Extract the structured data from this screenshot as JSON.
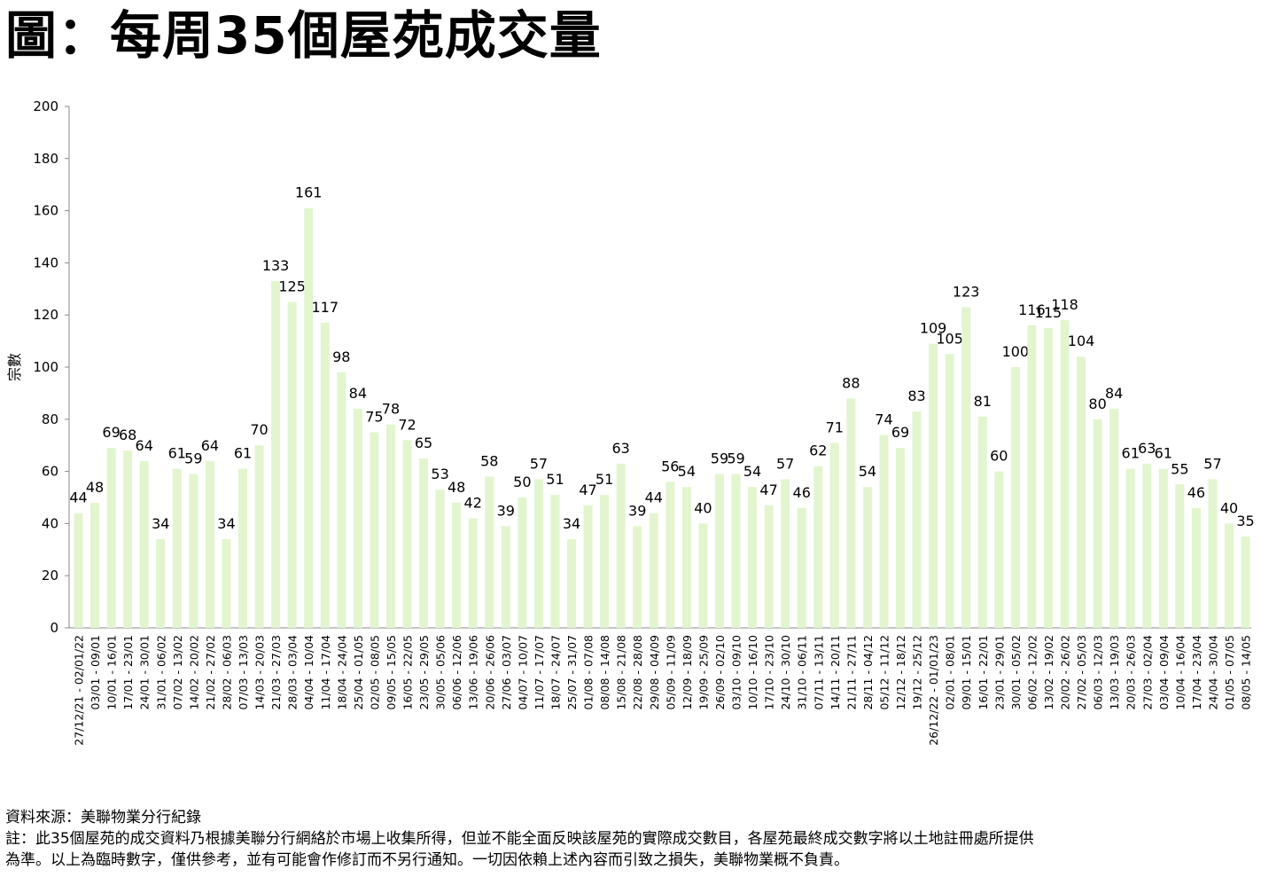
{
  "title": "圖：每周35個屋苑成交量",
  "footer": {
    "source": "資料來源：美聯物業分行紀錄",
    "note_line1": "註：此35個屋苑的成交資料乃根據美聯分行網絡於市場上收集所得，但並不能全面反映該屋苑的實際成交數目，各屋苑最終成交數字將以土地註冊處所提供",
    "note_line2": "為準。以上為臨時數字，僅供參考，並有可能會作修訂而不另行通知。一切因依賴上述內容而引致之損失，美聯物業概不負責。"
  },
  "colors": {
    "bar": "#e2f5cf",
    "axis": "#888888",
    "text": "#000000"
  },
  "chart_data": {
    "type": "bar",
    "title": "圖：每周35個屋苑成交量",
    "ylabel": "宗數",
    "xlabel": "",
    "ylim": [
      0,
      200
    ],
    "yticks": [
      0,
      20,
      40,
      60,
      80,
      100,
      120,
      140,
      160,
      180,
      200
    ],
    "grid": false,
    "legend": "none",
    "categories": [
      "27/12/21 - 02/01/22",
      "03/01 - 09/01",
      "10/01 - 16/01",
      "17/01 - 23/01",
      "24/01 - 30/01",
      "31/01 - 06/02",
      "07/02 - 13/02",
      "14/02 - 20/02",
      "21/02 - 27/02",
      "28/02 - 06/03",
      "07/03 - 13/03",
      "14/03 - 20/03",
      "21/03 - 27/03",
      "28/03 - 03/04",
      "04/04 - 10/04",
      "11/04 - 17/04",
      "18/04 - 24/04",
      "25/04 - 01/05",
      "02/05 - 08/05",
      "09/05 - 15/05",
      "16/05 - 22/05",
      "23/05 - 29/05",
      "30/05 - 05/06",
      "06/06 - 12/06",
      "13/06 - 19/06",
      "20/06 - 26/06",
      "27/06 - 03/07",
      "04/07 - 10/07",
      "11/07 - 17/07",
      "18/07 - 24/07",
      "25/07 - 31/07",
      "01/08 - 07/08",
      "08/08 - 14/08",
      "15/08 - 21/08",
      "22/08 - 28/08",
      "29/08 - 04/09",
      "05/09 - 11/09",
      "12/09 - 18/09",
      "19/09 - 25/09",
      "26/09 - 02/10",
      "03/10 - 09/10",
      "10/10 - 16/10",
      "17/10 - 23/10",
      "24/10 - 30/10",
      "31/10 - 06/11",
      "07/11 - 13/11",
      "14/11 - 20/11",
      "21/11 - 27/11",
      "28/11 - 04/12",
      "05/12 - 11/12",
      "12/12 - 18/12",
      "19/12 - 25/12",
      "26/12/22 - 01/01/23",
      "02/01 - 08/01",
      "09/01 - 15/01",
      "16/01 - 22/01",
      "23/01 - 29/01",
      "30/01 - 05/02",
      "06/02 - 12/02",
      "13/02 - 19/02",
      "20/02 - 26/02",
      "27/02 - 05/03",
      "06/03 - 12/03",
      "13/03 - 19/03",
      "20/03 - 26/03",
      "27/03 - 02/04",
      "03/04 - 09/04",
      "10/04 - 16/04",
      "17/04 - 23/04",
      "24/04 - 30/04",
      "01/05 - 07/05",
      "08/05 - 14/05"
    ],
    "values": [
      44,
      48,
      69,
      68,
      64,
      34,
      61,
      59,
      64,
      34,
      61,
      70,
      133,
      125,
      161,
      117,
      98,
      84,
      75,
      78,
      72,
      65,
      53,
      48,
      42,
      58,
      39,
      50,
      57,
      51,
      34,
      47,
      51,
      63,
      39,
      44,
      56,
      54,
      40,
      59,
      59,
      54,
      47,
      57,
      46,
      62,
      71,
      88,
      54,
      74,
      69,
      83,
      109,
      105,
      123,
      81,
      60,
      100,
      116,
      115,
      118,
      104,
      80,
      84,
      61,
      63,
      61,
      55,
      46,
      57,
      40,
      35
    ]
  }
}
